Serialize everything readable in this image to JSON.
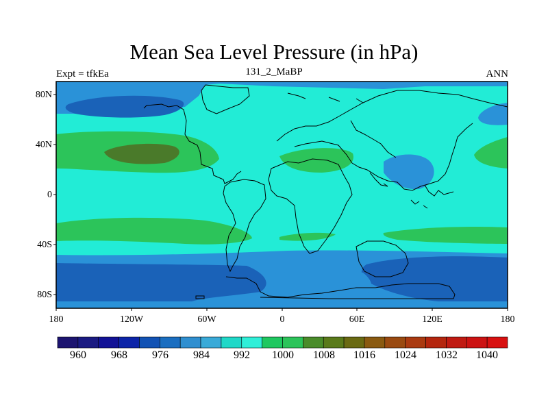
{
  "title": "Mean Sea Level Pressure (in hPa)",
  "left_string": "Expt = tfkEa",
  "center_string": "131_2_MaBP",
  "right_string": "ANN",
  "lat_labels": [
    "80N",
    "40N",
    "0",
    "40S",
    "80S"
  ],
  "lon_labels": [
    "180",
    "120W",
    "60W",
    "0",
    "60E",
    "120E",
    "180"
  ],
  "colorbar": {
    "labels": [
      "960",
      "968",
      "976",
      "984",
      "992",
      "1000",
      "1008",
      "1016",
      "1024",
      "1032",
      "1040"
    ],
    "colors": [
      "#1c1470",
      "#1a1a82",
      "#121296",
      "#0c24a8",
      "#1252b4",
      "#1a6ec0",
      "#2f8fd0",
      "#39aad8",
      "#1fd8c8",
      "#2fefd8",
      "#1fc860",
      "#2cc45a",
      "#4a8c2a",
      "#5a7a1a",
      "#6a6a12",
      "#8a5a10",
      "#9a4a10",
      "#aa3a10",
      "#b4260e",
      "#c01a12",
      "#cc1212",
      "#d81010"
    ]
  },
  "map_colors": {
    "band_984": "#1a62b8",
    "band_992": "#2a92d8",
    "band_1000": "#22ecd6",
    "band_1008": "#2cc45a",
    "band_1016": "#4a7a2a",
    "coast": "#000000"
  }
}
